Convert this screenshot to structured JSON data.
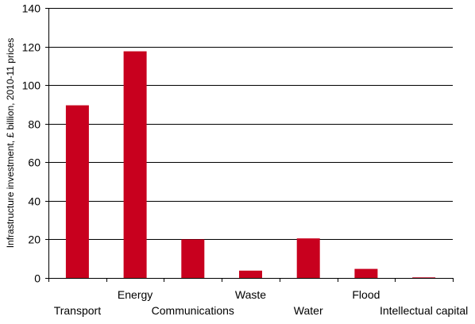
{
  "chart_data": {
    "type": "bar",
    "title": "",
    "xlabel": "",
    "ylabel": "Infrastructure investment,  £ billion, 2010-11  prices",
    "ylim": [
      0,
      140
    ],
    "yticks": [
      0,
      20,
      40,
      60,
      80,
      100,
      120,
      140
    ],
    "grid": true,
    "legend": "none",
    "categories": [
      "Transport",
      "Energy",
      "Communications",
      "Waste",
      "Water",
      "Flood",
      "Intellectual capital"
    ],
    "values": [
      89.5,
      117.5,
      20,
      3.8,
      20.5,
      4.7,
      0.3
    ],
    "bar_color": "#c8001e",
    "grid_color": "#000000"
  }
}
